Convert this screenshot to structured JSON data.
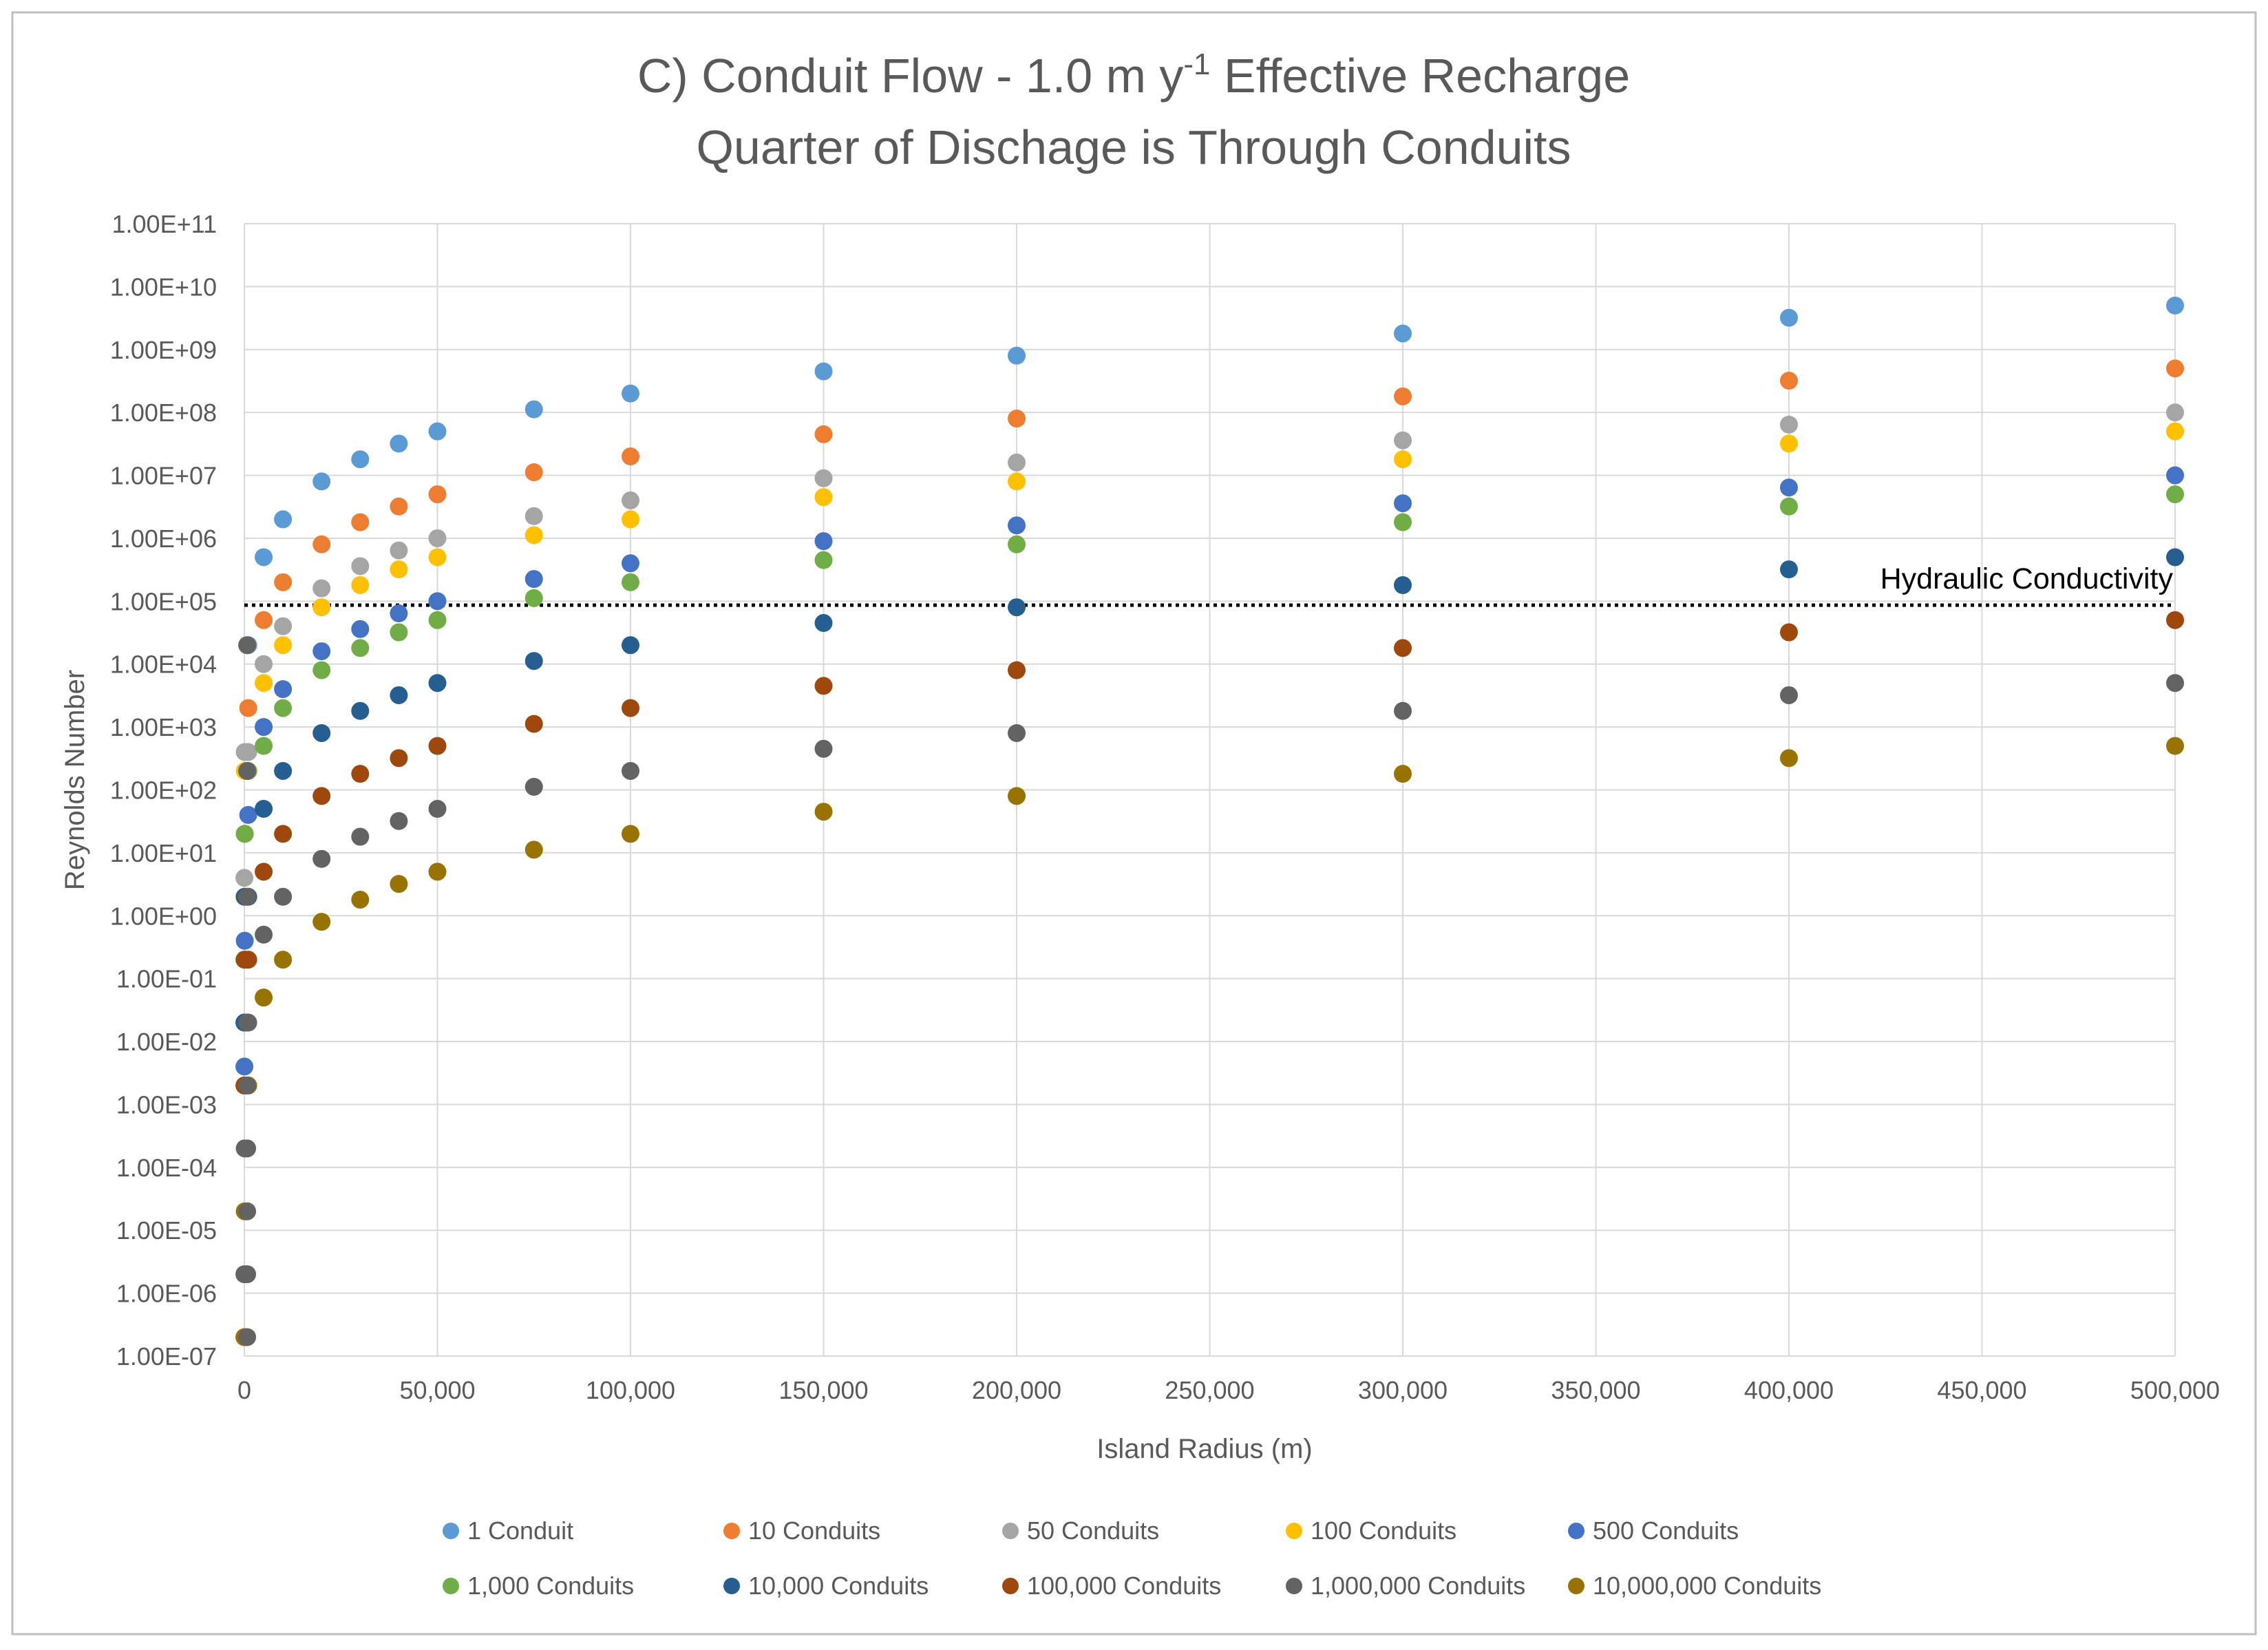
{
  "chart_data": {
    "type": "scatter",
    "title_main": "C) Conduit Flow - 1.0 m y",
    "title_sup": "-1",
    "title_rest": " Effective Recharge",
    "subtitle": "Quarter of Dischage is Through Conduits",
    "xlabel": "Island Radius (m)",
    "ylabel": "Reynolds Number",
    "xlim": [
      0,
      500000
    ],
    "ylim_log10": [
      -7,
      11
    ],
    "x_scale": "linear",
    "y_scale": "log",
    "grid": true,
    "legend_position": "bottom",
    "x_ticks": [
      0,
      50000,
      100000,
      150000,
      200000,
      250000,
      300000,
      350000,
      400000,
      450000,
      500000
    ],
    "x_tick_labels": [
      "0",
      "50,000",
      "100,000",
      "150,000",
      "200,000",
      "250,000",
      "300,000",
      "350,000",
      "400,000",
      "450,000",
      "500,000"
    ],
    "y_tick_labels": [
      "1.00E-07",
      "1.00E-06",
      "1.00E-05",
      "1.00E-04",
      "1.00E-03",
      "1.00E-02",
      "1.00E-01",
      "1.00E+00",
      "1.00E+01",
      "1.00E+02",
      "1.00E+03",
      "1.00E+04",
      "1.00E+05",
      "1.00E+06",
      "1.00E+07",
      "1.00E+08",
      "1.00E+09",
      "1.00E+10",
      "1.00E+11"
    ],
    "x": [
      10,
      100,
      1000,
      5000,
      10000,
      20000,
      30000,
      40000,
      50000,
      75000,
      100000,
      150000,
      200000,
      300000,
      400000,
      500000
    ],
    "base_values": [
      20000,
      200,
      2,
      0.02,
      0.002,
      0.0002,
      2e-05,
      2e-06,
      2e-07
    ],
    "series": [
      {
        "name": "1 Conduit",
        "color": "#5b9bd5",
        "values": [
          null,
          null,
          20000,
          500000,
          2000000,
          8000000,
          18000000,
          32000000,
          50000000,
          112000000,
          200000000,
          450000000,
          800000000,
          1800000000,
          3200000000,
          5000000000
        ]
      },
      {
        "name": "10 Conduits",
        "color": "#ed7d31",
        "values": [
          null,
          20,
          2000,
          50000,
          200000,
          800000,
          1800000,
          3200000,
          5000000,
          11200000,
          20000000,
          45000000,
          80000000,
          180000000,
          320000000,
          500000000
        ]
      },
      {
        "name": "50 Conduits",
        "color": "#a5a5a5",
        "values": [
          4,
          400,
          400,
          10000,
          40000,
          160000,
          360000,
          640000,
          1000000,
          2250000,
          4000000,
          9000000,
          16000000,
          36000000,
          64000000,
          100000000
        ]
      },
      {
        "name": "100 Conduits",
        "color": "#ffc000",
        "values": [
          2,
          200,
          200,
          5000,
          20000,
          80000,
          180000,
          320000,
          500000,
          1120000,
          2000000,
          4500000,
          8000000,
          18000000,
          32000000,
          50000000
        ]
      },
      {
        "name": "500 Conduits",
        "color": "#4472c4",
        "values": [
          0.004,
          0.4,
          40,
          1000,
          4000,
          16000,
          36000,
          64000,
          100000,
          225000,
          400000,
          900000,
          1600000,
          3600000,
          6400000,
          10000000
        ]
      },
      {
        "name": "1,000 Conduits",
        "color": "#70ad47",
        "values": [
          0.2,
          20,
          200,
          500,
          2000,
          8000,
          18000,
          32000,
          50000,
          112000,
          200000,
          450000,
          800000,
          1800000,
          3200000,
          5000000
        ]
      },
      {
        "name": "10,000 Conduits",
        "color": "#255e91",
        "values": [
          0.02,
          2,
          2,
          50,
          200,
          800,
          1800,
          3200,
          5000,
          11200,
          20000,
          45000,
          80000,
          180000,
          320000,
          500000
        ]
      },
      {
        "name": "100,000 Conduits",
        "color": "#9e480e",
        "values": [
          0.002,
          0.2,
          0.2,
          5,
          20,
          80,
          180,
          320,
          500,
          1120,
          2000,
          4500,
          8000,
          18000,
          32000,
          50000
        ]
      },
      {
        "name": "1,000,000 Conduits",
        "color": "#636363",
        "values": [
          2e-06,
          0.0002,
          0.02,
          0.5,
          2,
          8,
          18,
          32,
          50,
          112,
          200,
          450,
          800,
          1800,
          3200,
          5000
        ]
      },
      {
        "name": "10,000,000 Conduits",
        "color": "#997300",
        "values": [
          2e-07,
          2e-05,
          0.002,
          0.05,
          0.2,
          0.8,
          1.8,
          3.2,
          5,
          11.2,
          20,
          45,
          80,
          180,
          320,
          500
        ]
      }
    ],
    "reference_line": {
      "label": "Hydraulic Conductivity",
      "value": 86400,
      "style": "dotted"
    }
  },
  "colors": {
    "title": "#595959",
    "axis_text": "#595959",
    "grid": "#d9d9d9",
    "reference_line": "#000000",
    "annotation": "#000000"
  }
}
